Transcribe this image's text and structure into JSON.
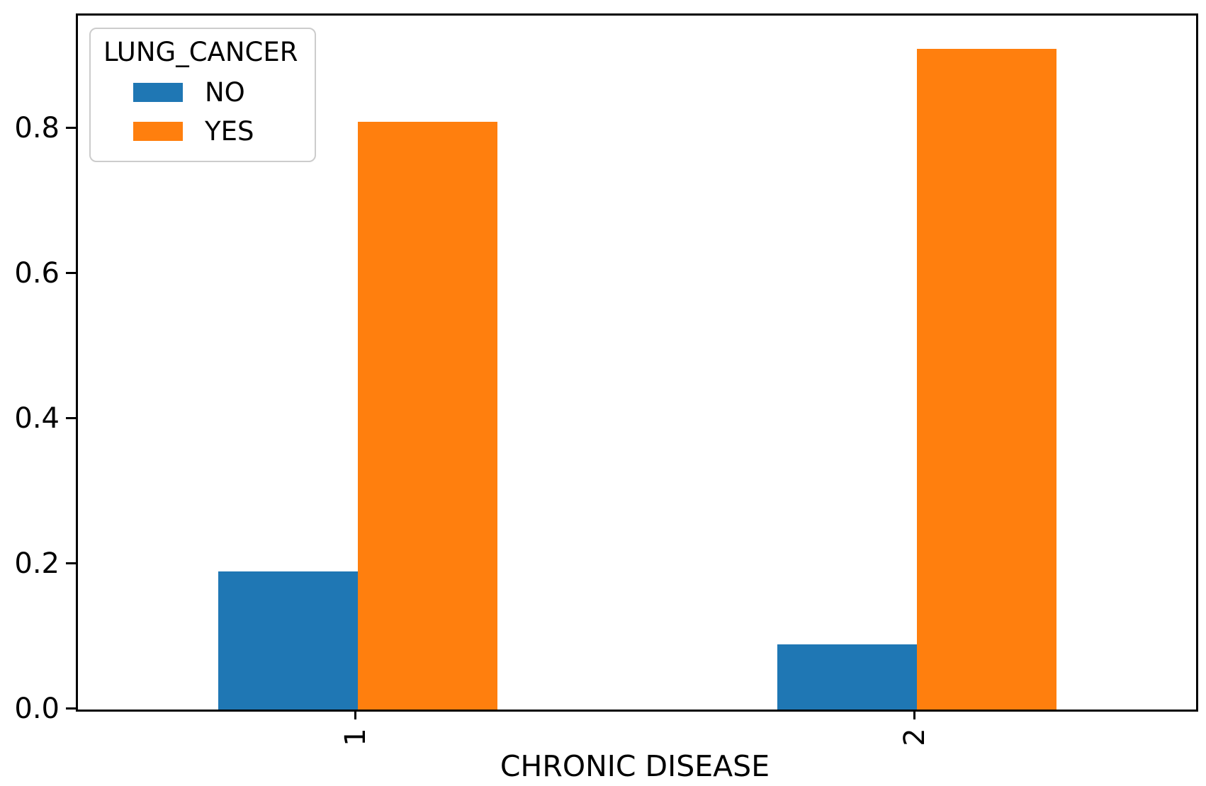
{
  "chart_data": {
    "type": "bar",
    "title": "",
    "xlabel": "CHRONIC DISEASE",
    "ylabel": "",
    "categories": [
      "1",
      "2"
    ],
    "series": [
      {
        "name": "NO",
        "color": "#1f77b4",
        "values": [
          0.19,
          0.09
        ]
      },
      {
        "name": "YES",
        "color": "#ff7f0e",
        "values": [
          0.81,
          0.91
        ]
      }
    ],
    "legend": {
      "title": "LUNG_CANCER",
      "position": "upper-left",
      "border_color": "#cccccc"
    },
    "axes": {
      "yticks": [
        0.0,
        0.2,
        0.4,
        0.6,
        0.8
      ],
      "ytick_labels": [
        "0.0",
        "0.2",
        "0.4",
        "0.6",
        "0.8"
      ],
      "ylim": [
        0,
        0.956
      ],
      "xtick_labels": [
        "1",
        "2"
      ],
      "xtick_rotation": 90,
      "grid": false,
      "spine_color": "#000000",
      "text_color": "#000000",
      "background": "#ffffff"
    }
  }
}
